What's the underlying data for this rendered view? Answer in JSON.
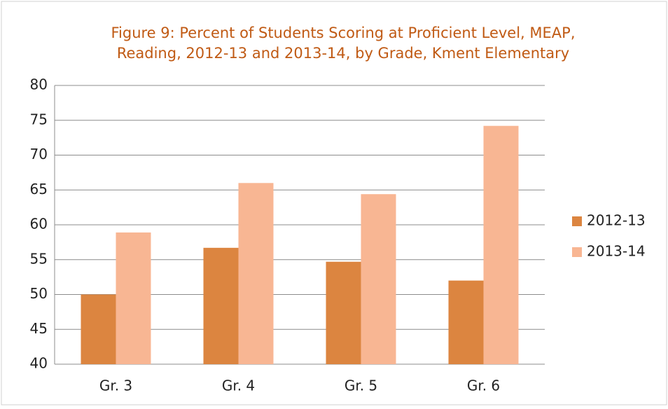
{
  "chart_data": {
    "type": "bar",
    "title": [
      "Figure 9: Percent of Students Scoring at Proficient Level, MEAP,",
      "Reading, 2012-13 and 2013-14, by Grade, Kment Elementary"
    ],
    "categories": [
      "Gr. 3",
      "Gr. 4",
      "Gr. 5",
      "Gr. 6"
    ],
    "series": [
      {
        "name": "2012-13",
        "color": "#dc8540",
        "values": [
          50,
          56.7,
          54.7,
          52
        ]
      },
      {
        "name": "2013-14",
        "color": "#f8b693",
        "values": [
          58.9,
          66,
          64.4,
          74.2
        ]
      }
    ],
    "ylim": [
      40,
      80
    ],
    "yticks": [
      40,
      45,
      50,
      55,
      60,
      65,
      70,
      75,
      80
    ],
    "grid": true,
    "legend": "right"
  }
}
